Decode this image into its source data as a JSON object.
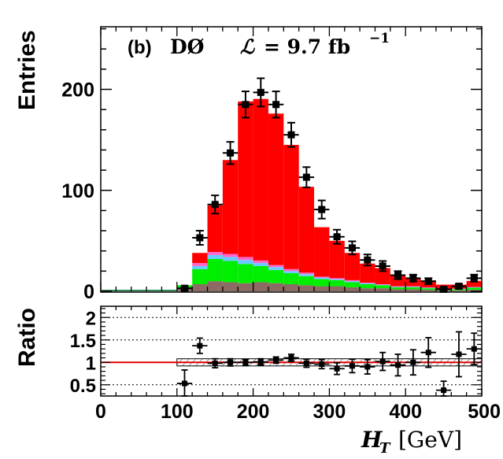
{
  "chart_data": [
    {
      "type": "bar",
      "stacked": true,
      "panel_label": "(b)",
      "experiment": "DØ",
      "luminosity_symbol": "ℒ",
      "luminosity": "= 9.7 fb",
      "luminosity_exp": "−1",
      "ylabel": "Entries",
      "ylim": [
        0,
        262
      ],
      "yticks": [
        0,
        100,
        200
      ],
      "xlim": [
        0,
        500
      ],
      "bin_width": 20,
      "x": [
        110,
        130,
        150,
        170,
        190,
        210,
        230,
        250,
        270,
        290,
        310,
        330,
        350,
        370,
        390,
        410,
        430,
        450,
        470,
        490
      ],
      "series": [
        {
          "color": "#8b6b63",
          "values": [
            3,
            7,
            10,
            9,
            8,
            9,
            8,
            7,
            6,
            5,
            5,
            4,
            3,
            3,
            2,
            2,
            1.5,
            1,
            1,
            1.5
          ]
        },
        {
          "color": "#00ee00",
          "values": [
            3,
            15,
            22,
            21,
            19,
            16,
            13,
            11,
            9,
            7,
            6,
            5,
            4,
            3,
            2,
            2,
            1.5,
            1,
            1,
            2
          ]
        },
        {
          "color": "#66ccff",
          "values": [
            0,
            3,
            4,
            4,
            4,
            3,
            3,
            2,
            2,
            1.5,
            1,
            1,
            1,
            0.5,
            0.5,
            0.5,
            0.5,
            0.3,
            0.3,
            0.5
          ]
        },
        {
          "color": "#ff66cc",
          "values": [
            0,
            3,
            3,
            3,
            3,
            2.5,
            2,
            2,
            1.5,
            1,
            1,
            1,
            0.5,
            0.5,
            0.5,
            0.5,
            0.3,
            0.3,
            0.3,
            0.3
          ]
        },
        {
          "color": "#ff0000",
          "values": [
            0,
            10,
            46,
            93,
            154,
            160,
            150,
            123,
            85,
            49,
            37,
            27,
            19,
            16,
            11,
            8,
            6,
            4,
            4,
            6
          ]
        }
      ],
      "data_points": {
        "y": [
          3,
          53,
          86,
          137,
          185,
          197,
          185,
          155,
          113,
          81,
          54,
          43,
          31,
          25,
          16,
          13,
          10,
          2,
          5,
          13
        ],
        "yerr": [
          1.8,
          7,
          9,
          11,
          13,
          14,
          13,
          12,
          10,
          9,
          7,
          6.5,
          5.5,
          5,
          4,
          3.5,
          3,
          1.5,
          2.2,
          3.5
        ]
      }
    },
    {
      "type": "scatter",
      "ylabel": "Ratio",
      "ylim": [
        0.25,
        2.25
      ],
      "yticks": [
        0.5,
        1,
        1.5,
        2
      ],
      "ytick_labels": [
        "0.5",
        "1",
        "1.5",
        "2"
      ],
      "xlim": [
        0,
        500
      ],
      "xticks": [
        0,
        100,
        200,
        300,
        400,
        500
      ],
      "xlabel_italic": "H",
      "xlabel_sub": "T",
      "xlabel_unit": "[GeV]",
      "reference_line": 1,
      "dashed_gridlines": [
        0.5,
        1.5,
        2
      ],
      "band_halfwidth": 0.08,
      "x": [
        110,
        130,
        150,
        170,
        190,
        210,
        230,
        250,
        270,
        290,
        310,
        330,
        350,
        370,
        390,
        410,
        430,
        450,
        470,
        490
      ],
      "y": [
        0.53,
        1.37,
        0.98,
        1.0,
        1.0,
        1.01,
        1.05,
        1.1,
        0.98,
        0.96,
        0.86,
        0.92,
        0.9,
        1.02,
        0.94,
        1.0,
        1.22,
        0.38,
        1.18,
        1.3
      ],
      "yerr": [
        0.3,
        0.17,
        0.1,
        0.08,
        0.07,
        0.07,
        0.07,
        0.08,
        0.09,
        0.1,
        0.13,
        0.15,
        0.16,
        0.2,
        0.24,
        0.28,
        0.33,
        0.2,
        0.5,
        0.35
      ]
    }
  ]
}
